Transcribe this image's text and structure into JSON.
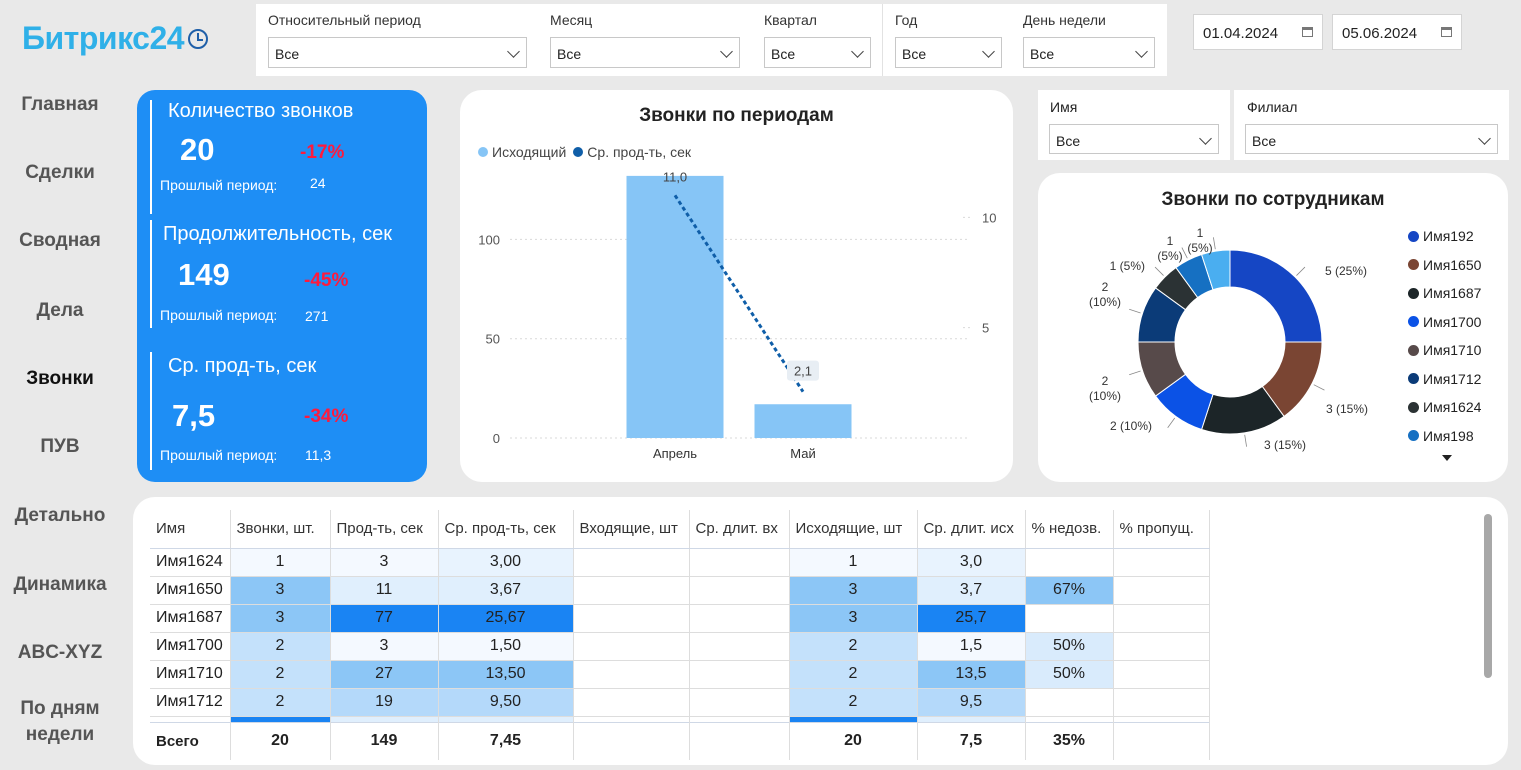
{
  "logo": "Битрикс24",
  "filters": [
    {
      "label": "Относительный период",
      "value": "Все"
    },
    {
      "label": "Месяц",
      "value": "Все"
    },
    {
      "label": "Квартал",
      "value": "Все"
    },
    {
      "label": "Год",
      "value": "Все"
    },
    {
      "label": "День недели",
      "value": "Все"
    }
  ],
  "dates": {
    "from": "01.04.2024",
    "to": "05.06.2024"
  },
  "nav": [
    "Главная",
    "Сделки",
    "Сводная",
    "Дела",
    "Звонки",
    "ПУВ",
    "Детально",
    "Динамика",
    "ABC-XYZ",
    "По дням недели"
  ],
  "nav_active": "Звонки",
  "kpis": [
    {
      "title": "Количество звонков",
      "value": "20",
      "delta": "-17%",
      "prev_label": "Прошлый период:",
      "prev_value": "24"
    },
    {
      "title": "Продолжительность, сек",
      "value": "149",
      "delta": "-45%",
      "prev_label": "Прошлый период:",
      "prev_value": "271"
    },
    {
      "title": "Ср. прод-ть, сек",
      "value": "7,5",
      "delta": "-34%",
      "prev_label": "Прошлый период:",
      "prev_value": "11,3"
    }
  ],
  "period_chart": {
    "title": "Звонки по периодам",
    "legend": [
      "Исходящий",
      "Ср. прод-ть, сек"
    ]
  },
  "right_filters": [
    {
      "label": "Имя",
      "value": "Все"
    },
    {
      "label": "Филиал",
      "value": "Все"
    }
  ],
  "donut": {
    "title": "Звонки по сотрудникам",
    "legend": [
      "Имя192",
      "Имя1650",
      "Имя1687",
      "Имя1700",
      "Имя1710",
      "Имя1712",
      "Имя1624",
      "Имя198"
    ]
  },
  "chart_data": [
    {
      "type": "bar",
      "title": "Звонки по периодам",
      "categories": [
        "Апрель",
        "Май"
      ],
      "series": [
        {
          "name": "Исходящий",
          "type": "bar",
          "axis": "left",
          "values": [
            132,
            17
          ]
        },
        {
          "name": "Ср. прод-ть, сек",
          "type": "line",
          "axis": "right",
          "values": [
            11.0,
            2.1
          ]
        }
      ],
      "data_labels": [
        "11,0",
        "2,1"
      ],
      "y_ticks": [
        "0",
        "50",
        "100"
      ],
      "y2_ticks": [
        "5",
        "10"
      ],
      "ylim": [
        0,
        140
      ],
      "y2lim": [
        0,
        12.6
      ],
      "legend_position": "top-left"
    },
    {
      "type": "pie",
      "title": "Звонки по сотрудникам",
      "donut": true,
      "slices": [
        {
          "label": "Имя192",
          "value": 5,
          "text": "5 (25%)",
          "color": "#1546c4"
        },
        {
          "label": "Имя1650",
          "value": 3,
          "text": "3 (15%)",
          "color": "#7a4533"
        },
        {
          "label": "Имя1687",
          "value": 3,
          "text": "3 (15%)",
          "color": "#1c2528"
        },
        {
          "label": "Имя1700",
          "value": 2,
          "text": "2 (10%)",
          "color": "#0b52e6"
        },
        {
          "label": "Имя1710",
          "value": 2,
          "text": "2 (10%)",
          "color": "#574a4a"
        },
        {
          "label": "Имя1712",
          "value": 2,
          "text": "2 (10%)",
          "color": "#0b3b78"
        },
        {
          "label": "Имя1624",
          "value": 1,
          "text": "1 (5%)",
          "color": "#2b3234"
        },
        {
          "label": "Имя198",
          "value": 1,
          "text": "1 (5%)",
          "color": "#1670c2"
        },
        {
          "label": "",
          "value": 1,
          "text": "1 (5%)",
          "color": "#4aaef0"
        }
      ]
    }
  ],
  "table": {
    "headers": [
      "Имя",
      "Звонки, шт.",
      "Прод-ть, сек",
      "Ср. прод-ть, сек",
      "Входящие, шт",
      "Ср. длит. вх",
      "Исходящие, шт",
      "Ср. длит. исх",
      "% недозв.",
      "% пропущ."
    ],
    "rows": [
      [
        "Имя1624",
        "1",
        "3",
        "3,00",
        "",
        "",
        "1",
        "3,0",
        "",
        ""
      ],
      [
        "Имя1650",
        "3",
        "11",
        "3,67",
        "",
        "",
        "3",
        "3,7",
        "67%",
        ""
      ],
      [
        "Имя1687",
        "3",
        "77",
        "25,67",
        "",
        "",
        "3",
        "25,7",
        "",
        ""
      ],
      [
        "Имя1700",
        "2",
        "3",
        "1,50",
        "",
        "",
        "2",
        "1,5",
        "50%",
        ""
      ],
      [
        "Имя1710",
        "2",
        "27",
        "13,50",
        "",
        "",
        "2",
        "13,5",
        "50%",
        ""
      ],
      [
        "Имя1712",
        "2",
        "19",
        "9,50",
        "",
        "",
        "2",
        "9,5",
        "",
        ""
      ]
    ],
    "total": [
      "Всего",
      "20",
      "149",
      "7,45",
      "",
      "",
      "20",
      "7,5",
      "35%",
      ""
    ]
  },
  "colors": {
    "kpi_bg": "#1e8ef5",
    "delta": "#ff1a3c",
    "accent": "#2fb0e8"
  }
}
